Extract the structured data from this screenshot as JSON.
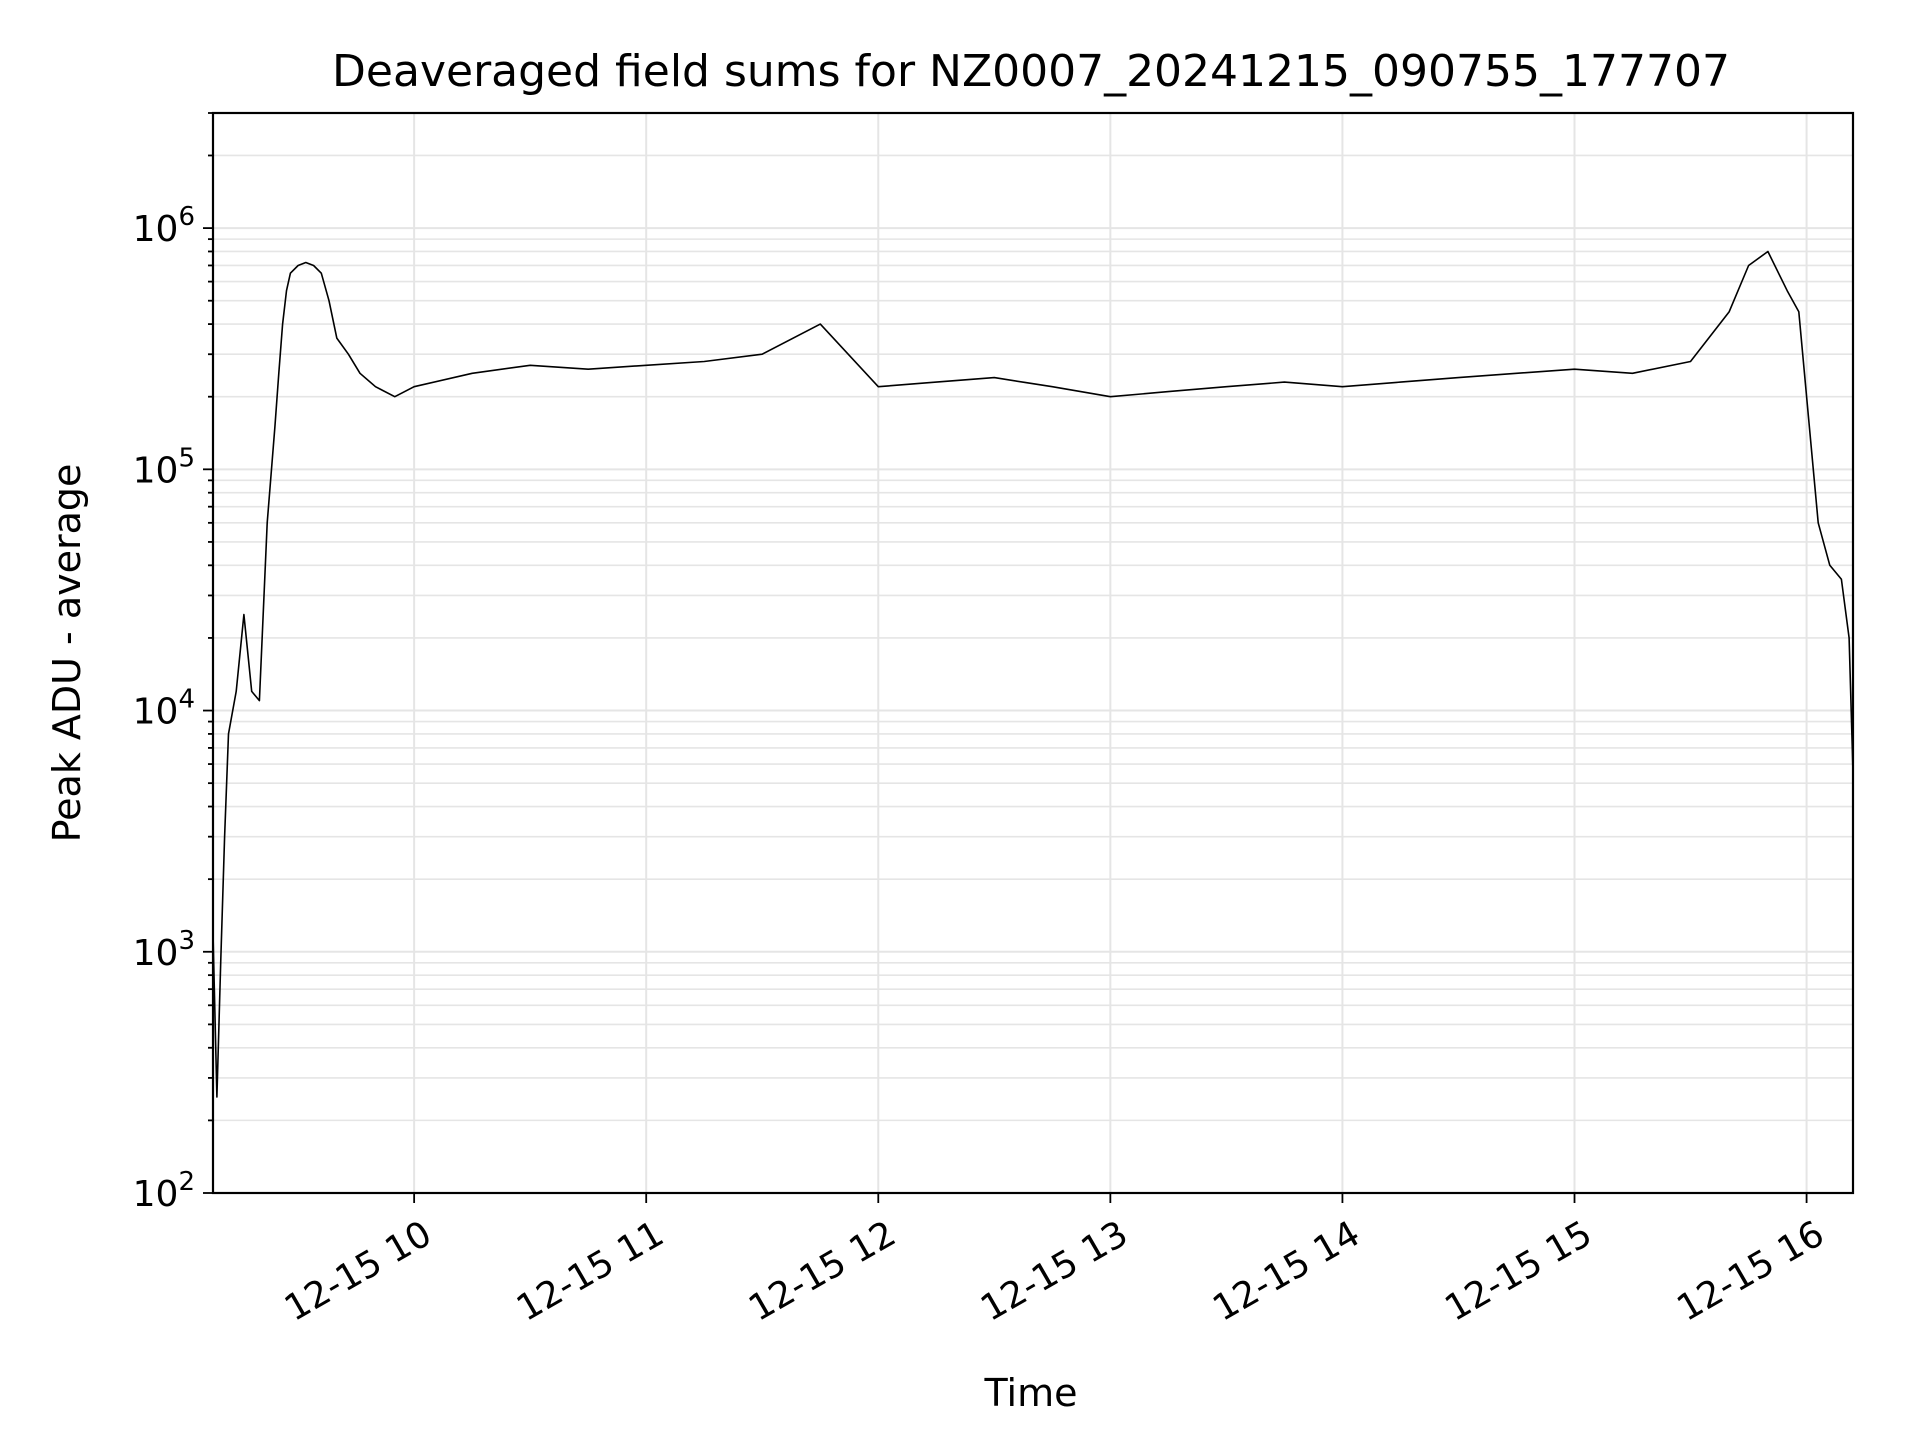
{
  "chart_data": {
    "type": "line",
    "title": "Deaveraged field sums for NZ0007_20241215_090755_177707",
    "xlabel": "Time",
    "ylabel": "Peak ADU - average",
    "yscale": "log",
    "ylim": [
      100,
      3000000
    ],
    "xlim": [
      "2024-12-15 09:08",
      "2024-12-15 16:12"
    ],
    "grid": true,
    "x_tick_labels": [
      "12-15 10",
      "12-15 11",
      "12-15 12",
      "12-15 13",
      "12-15 14",
      "12-15 15",
      "12-15 16"
    ],
    "y_tick_labels": [
      {
        "base": "10",
        "exp": "2"
      },
      {
        "base": "10",
        "exp": "3"
      },
      {
        "base": "10",
        "exp": "4"
      },
      {
        "base": "10",
        "exp": "5"
      },
      {
        "base": "10",
        "exp": "6"
      }
    ],
    "line_color": "#000000",
    "grid_color": "#e5e5e5",
    "series": [
      {
        "x": [
          "2024-12-15 09:08",
          "2024-12-15 09:09",
          "2024-12-15 09:10",
          "2024-12-15 09:11",
          "2024-12-15 09:12",
          "2024-12-15 09:14",
          "2024-12-15 09:16",
          "2024-12-15 09:18",
          "2024-12-15 09:20",
          "2024-12-15 09:22",
          "2024-12-15 09:24",
          "2024-12-15 09:25",
          "2024-12-15 09:26",
          "2024-12-15 09:27",
          "2024-12-15 09:28",
          "2024-12-15 09:30",
          "2024-12-15 09:32",
          "2024-12-15 09:34",
          "2024-12-15 09:36",
          "2024-12-15 09:38",
          "2024-12-15 09:40",
          "2024-12-15 09:43",
          "2024-12-15 09:46",
          "2024-12-15 09:50",
          "2024-12-15 09:55",
          "2024-12-15 10:00",
          "2024-12-15 10:15",
          "2024-12-15 10:30",
          "2024-12-15 10:45",
          "2024-12-15 11:00",
          "2024-12-15 11:15",
          "2024-12-15 11:30",
          "2024-12-15 11:45",
          "2024-12-15 12:00",
          "2024-12-15 12:15",
          "2024-12-15 12:30",
          "2024-12-15 12:45",
          "2024-12-15 13:00",
          "2024-12-15 13:15",
          "2024-12-15 13:30",
          "2024-12-15 13:45",
          "2024-12-15 14:00",
          "2024-12-15 14:15",
          "2024-12-15 14:30",
          "2024-12-15 14:45",
          "2024-12-15 15:00",
          "2024-12-15 15:15",
          "2024-12-15 15:30",
          "2024-12-15 15:40",
          "2024-12-15 15:45",
          "2024-12-15 15:50",
          "2024-12-15 15:55",
          "2024-12-15 15:58",
          "2024-12-15 16:00",
          "2024-12-15 16:03",
          "2024-12-15 16:06",
          "2024-12-15 16:09",
          "2024-12-15 16:11",
          "2024-12-15 16:12"
        ],
        "y": [
          1200,
          250,
          900,
          3000,
          8000,
          12000,
          25000,
          12000,
          11000,
          60000,
          150000,
          250000,
          400000,
          550000,
          650000,
          700000,
          720000,
          700000,
          650000,
          500000,
          350000,
          300000,
          250000,
          220000,
          200000,
          220000,
          250000,
          270000,
          260000,
          270000,
          280000,
          300000,
          400000,
          220000,
          230000,
          240000,
          220000,
          200000,
          210000,
          220000,
          230000,
          220000,
          230000,
          240000,
          250000,
          260000,
          250000,
          280000,
          450000,
          700000,
          800000,
          550000,
          450000,
          200000,
          60000,
          40000,
          35000,
          20000,
          5500
        ]
      }
    ]
  }
}
